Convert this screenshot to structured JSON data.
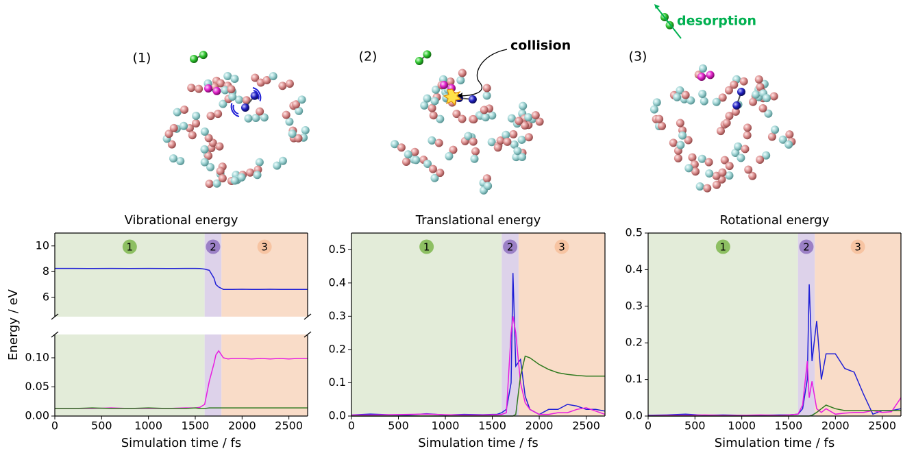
{
  "illustration": {
    "panels": [
      "(1)",
      "(2)",
      "(3)"
    ],
    "collision": "collision",
    "desorption": "desorption"
  },
  "chart_data": [
    {
      "type": "line",
      "title": "Vibrational energy",
      "xlabel": "Simulation time / fs",
      "ylabel": "Energy / eV",
      "xlim": [
        0,
        2700
      ],
      "xticks": [
        0,
        500,
        1000,
        1500,
        2000,
        2500
      ],
      "ylim": [
        0,
        0.14
      ],
      "yticks": [
        {
          "value": 0,
          "label": "0.00"
        },
        0.05,
        {
          "value": 0.1,
          "label": "0.10"
        }
      ],
      "y2lim": [
        4.5,
        11
      ],
      "y2ticks": [
        6,
        8,
        10
      ],
      "phases": [
        {
          "label": "1",
          "start": 0,
          "end": 1600,
          "color": "#e3ecd9",
          "badge": "#8dbf62"
        },
        {
          "label": "2",
          "start": 1600,
          "end": 1780,
          "color": "#ddd2ea",
          "badge": "#9b80c6"
        },
        {
          "label": "3",
          "start": 1780,
          "end": 2700,
          "color": "#f9dcc8",
          "badge": "#f7c4a2"
        }
      ],
      "x": [
        0,
        200,
        400,
        600,
        800,
        1000,
        1200,
        1400,
        1500,
        1550,
        1600,
        1650,
        1700,
        1720,
        1750,
        1800,
        1850,
        1900,
        2000,
        2100,
        2200,
        2300,
        2400,
        2500,
        2600,
        2700
      ],
      "series": [
        {
          "color": "#1f1fd6",
          "axis": "y2",
          "values": [
            8.25,
            8.25,
            8.24,
            8.25,
            8.24,
            8.25,
            8.24,
            8.25,
            8.25,
            8.24,
            8.2,
            8.1,
            7.5,
            7.0,
            6.8,
            6.62,
            6.62,
            6.62,
            6.63,
            6.62,
            6.62,
            6.63,
            6.62,
            6.62,
            6.62,
            6.62
          ]
        },
        {
          "color": "#e81ce0",
          "values": [
            0.013,
            0.013,
            0.013,
            0.014,
            0.013,
            0.013,
            0.013,
            0.014,
            0.014,
            0.015,
            0.02,
            0.06,
            0.09,
            0.105,
            0.112,
            0.1,
            0.098,
            0.099,
            0.099,
            0.098,
            0.099,
            0.098,
            0.099,
            0.098,
            0.099,
            0.099
          ]
        },
        {
          "color": "#2f7a1f",
          "values": [
            0.013,
            0.013,
            0.014,
            0.013,
            0.013,
            0.014,
            0.013,
            0.013,
            0.014,
            0.013,
            0.013,
            0.014,
            0.014,
            0.014,
            0.014,
            0.014,
            0.014,
            0.014,
            0.014,
            0.014,
            0.014,
            0.014,
            0.014,
            0.014,
            0.014,
            0.014
          ]
        }
      ]
    },
    {
      "type": "line",
      "title": "Translational energy",
      "xlabel": "Simulation time / fs",
      "xlim": [
        0,
        2700
      ],
      "xticks": [
        0,
        500,
        1000,
        1500,
        2000,
        2500
      ],
      "ylim": [
        0,
        0.55
      ],
      "yticks": [
        {
          "value": 0,
          "label": "0.0"
        },
        0.1,
        0.2,
        0.3,
        0.4,
        0.5
      ],
      "phases": [
        {
          "label": "1",
          "start": 0,
          "end": 1600,
          "color": "#e3ecd9",
          "badge": "#8dbf62"
        },
        {
          "label": "2",
          "start": 1600,
          "end": 1780,
          "color": "#ddd2ea",
          "badge": "#9b80c6"
        },
        {
          "label": "3",
          "start": 1780,
          "end": 2700,
          "color": "#f9dcc8",
          "badge": "#f7c4a2"
        }
      ],
      "x": [
        0,
        200,
        400,
        600,
        800,
        1000,
        1200,
        1400,
        1500,
        1550,
        1600,
        1650,
        1700,
        1720,
        1750,
        1800,
        1850,
        1900,
        2000,
        2100,
        2200,
        2300,
        2400,
        2500,
        2600,
        2700
      ],
      "series": [
        {
          "color": "#1f1fd6",
          "values": [
            0.003,
            0.006,
            0.004,
            0.003,
            0.007,
            0.003,
            0.005,
            0.004,
            0.005,
            0.005,
            0.01,
            0.02,
            0.1,
            0.43,
            0.15,
            0.17,
            0.06,
            0.02,
            0.005,
            0.02,
            0.02,
            0.035,
            0.03,
            0.02,
            0.02,
            0.015
          ]
        },
        {
          "color": "#e81ce0",
          "values": [
            0.003,
            0.003,
            0.004,
            0.005,
            0.006,
            0.004,
            0.003,
            0.003,
            0.004,
            0.004,
            0.005,
            0.01,
            0.25,
            0.3,
            0.25,
            0.1,
            0.04,
            0.02,
            0.005,
            0.005,
            0.01,
            0.01,
            0.02,
            0.025,
            0.015,
            0.005
          ]
        },
        {
          "color": "#2f7a1f",
          "values": [
            0,
            0,
            0,
            0,
            0,
            0,
            0,
            0,
            0,
            0,
            0,
            0,
            0,
            0,
            0.005,
            0.12,
            0.18,
            0.175,
            0.155,
            0.14,
            0.13,
            0.125,
            0.122,
            0.12,
            0.12,
            0.12
          ]
        }
      ]
    },
    {
      "type": "line",
      "title": "Rotational energy",
      "xlabel": "Simulation time / fs",
      "xlim": [
        0,
        2700
      ],
      "xticks": [
        0,
        500,
        1000,
        1500,
        2000,
        2500
      ],
      "ylim": [
        0,
        0.5
      ],
      "yticks": [
        {
          "value": 0,
          "label": "0.0"
        },
        0.1,
        0.2,
        0.3,
        0.4,
        0.5
      ],
      "phases": [
        {
          "label": "1",
          "start": 0,
          "end": 1600,
          "color": "#e3ecd9",
          "badge": "#8dbf62"
        },
        {
          "label": "2",
          "start": 1600,
          "end": 1780,
          "color": "#ddd2ea",
          "badge": "#9b80c6"
        },
        {
          "label": "3",
          "start": 1780,
          "end": 2700,
          "color": "#f9dcc8",
          "badge": "#f7c4a2"
        }
      ],
      "x": [
        0,
        200,
        400,
        600,
        800,
        1000,
        1200,
        1400,
        1500,
        1550,
        1600,
        1650,
        1700,
        1720,
        1750,
        1800,
        1850,
        1900,
        2000,
        2100,
        2200,
        2300,
        2400,
        2500,
        2600,
        2700
      ],
      "series": [
        {
          "color": "#1f1fd6",
          "values": [
            0.002,
            0.003,
            0.005,
            0.002,
            0.003,
            0.002,
            0.002,
            0.003,
            0.003,
            0.004,
            0.005,
            0.02,
            0.1,
            0.36,
            0.15,
            0.26,
            0.1,
            0.17,
            0.17,
            0.13,
            0.12,
            0.06,
            0.005,
            0.015,
            0.015,
            0.02
          ]
        },
        {
          "color": "#e81ce0",
          "values": [
            0.001,
            0.002,
            0.002,
            0.003,
            0.002,
            0.002,
            0.003,
            0.002,
            0.003,
            0.004,
            0.005,
            0.03,
            0.15,
            0.05,
            0.095,
            0.02,
            0.01,
            0.02,
            0.005,
            0.008,
            0.01,
            0.01,
            0.015,
            0.01,
            0.012,
            0.05
          ]
        },
        {
          "color": "#2f7a1f",
          "values": [
            0,
            0,
            0,
            0,
            0,
            0,
            0,
            0,
            0,
            0,
            0,
            0,
            0,
            0,
            0.002,
            0.01,
            0.02,
            0.03,
            0.02,
            0.015,
            0.015,
            0.015,
            0.015,
            0.015,
            0.015,
            0.015
          ]
        }
      ]
    }
  ]
}
